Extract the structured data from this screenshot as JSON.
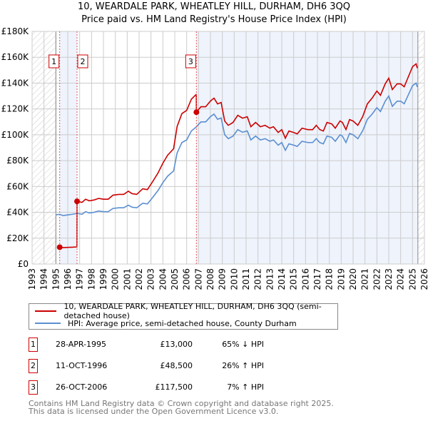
{
  "title_line1": "10, WEARDALE PARK, WHEATLEY HILL, DURHAM, DH6 3QQ",
  "title_line2": "Price paid vs. HM Land Registry's House Price Index (HPI)",
  "chart_data": {
    "type": "line",
    "title": "10, WEARDALE PARK, WHEATLEY HILL, DURHAM, DH6 3QQ — Price paid vs. HM Land Registry's House Price Index (HPI)",
    "xlim": [
      1993,
      2026
    ],
    "ylim": [
      0,
      180000
    ],
    "yticks": [
      {
        "v": 0,
        "label": "£0"
      },
      {
        "v": 20000,
        "label": "£20K"
      },
      {
        "v": 40000,
        "label": "£40K"
      },
      {
        "v": 60000,
        "label": "£60K"
      },
      {
        "v": 80000,
        "label": "£80K"
      },
      {
        "v": 100000,
        "label": "£100K"
      },
      {
        "v": 120000,
        "label": "£120K"
      },
      {
        "v": 140000,
        "label": "£140K"
      },
      {
        "v": 160000,
        "label": "£160K"
      },
      {
        "v": 180000,
        "label": "£180K"
      }
    ],
    "xticks": [
      "1993",
      "1994",
      "1995",
      "1996",
      "1997",
      "1998",
      "1999",
      "2000",
      "2001",
      "2002",
      "2003",
      "2004",
      "2005",
      "2006",
      "2007",
      "2008",
      "2009",
      "2010",
      "2011",
      "2012",
      "2013",
      "2014",
      "2015",
      "2016",
      "2017",
      "2018",
      "2019",
      "2020",
      "2021",
      "2022",
      "2023",
      "2024",
      "2025",
      "2026"
    ],
    "grid": true,
    "data_range": [
      1995.0,
      2025.45
    ],
    "series": [
      {
        "name": "10, WEARDALE PARK, WHEATLEY HILL, DURHAM, DH6 3QQ (semi-detached house)",
        "color": "#cc0000",
        "derived_from_hpi": true
      },
      {
        "name": "HPI: Average price, semi-detached house, County Durham",
        "color": "#5b8fd0",
        "points": [
          [
            1995.0,
            38000
          ],
          [
            1995.3,
            38500
          ],
          [
            1995.6,
            37500
          ],
          [
            1996.0,
            38000
          ],
          [
            1996.4,
            38500
          ],
          [
            1996.8,
            39200
          ],
          [
            1997.2,
            38500
          ],
          [
            1997.5,
            40500
          ],
          [
            1997.8,
            39500
          ],
          [
            1998.2,
            40000
          ],
          [
            1998.6,
            41000
          ],
          [
            1999.0,
            40500
          ],
          [
            1999.4,
            40500
          ],
          [
            1999.8,
            43000
          ],
          [
            2000.3,
            43500
          ],
          [
            2000.7,
            43500
          ],
          [
            2001.1,
            45500
          ],
          [
            2001.4,
            44000
          ],
          [
            2001.8,
            43500
          ],
          [
            2002.3,
            47000
          ],
          [
            2002.7,
            46500
          ],
          [
            2003.1,
            51000
          ],
          [
            2003.6,
            57000
          ],
          [
            2004.0,
            63000
          ],
          [
            2004.4,
            68000
          ],
          [
            2004.9,
            72000
          ],
          [
            2005.2,
            86000
          ],
          [
            2005.6,
            94000
          ],
          [
            2006.0,
            96000
          ],
          [
            2006.4,
            103000
          ],
          [
            2006.8,
            106000
          ],
          [
            2007.2,
            110000
          ],
          [
            2007.6,
            110000
          ],
          [
            2008.0,
            114000
          ],
          [
            2008.3,
            116000
          ],
          [
            2008.6,
            112000
          ],
          [
            2008.9,
            113000
          ],
          [
            2009.2,
            100000
          ],
          [
            2009.5,
            97000
          ],
          [
            2009.9,
            99000
          ],
          [
            2010.3,
            104000
          ],
          [
            2010.7,
            102000
          ],
          [
            2011.1,
            103000
          ],
          [
            2011.4,
            96000
          ],
          [
            2011.8,
            99000
          ],
          [
            2012.2,
            96000
          ],
          [
            2012.6,
            97000
          ],
          [
            2013.0,
            95000
          ],
          [
            2013.3,
            96000
          ],
          [
            2013.7,
            92000
          ],
          [
            2014.0,
            94000
          ],
          [
            2014.3,
            88000
          ],
          [
            2014.6,
            93000
          ],
          [
            2015.0,
            92000
          ],
          [
            2015.3,
            91000
          ],
          [
            2015.7,
            95000
          ],
          [
            2016.2,
            94000
          ],
          [
            2016.6,
            94000
          ],
          [
            2016.9,
            97000
          ],
          [
            2017.2,
            94000
          ],
          [
            2017.5,
            93000
          ],
          [
            2017.8,
            99000
          ],
          [
            2018.2,
            98000
          ],
          [
            2018.5,
            95000
          ],
          [
            2018.9,
            100000
          ],
          [
            2019.1,
            99000
          ],
          [
            2019.4,
            94000
          ],
          [
            2019.7,
            101000
          ],
          [
            2020.0,
            100000
          ],
          [
            2020.4,
            97000
          ],
          [
            2020.8,
            103000
          ],
          [
            2021.2,
            112000
          ],
          [
            2021.6,
            116000
          ],
          [
            2022.0,
            121000
          ],
          [
            2022.3,
            118000
          ],
          [
            2022.7,
            126000
          ],
          [
            2023.0,
            130000
          ],
          [
            2023.3,
            122000
          ],
          [
            2023.7,
            126000
          ],
          [
            2024.0,
            126000
          ],
          [
            2024.3,
            124000
          ],
          [
            2024.6,
            130000
          ],
          [
            2025.0,
            138000
          ],
          [
            2025.3,
            140000
          ],
          [
            2025.4,
            137000
          ]
        ]
      }
    ],
    "sales": [
      {
        "id": "1",
        "x": 1995.32,
        "price": 13000,
        "date": "28-APR-1995",
        "price_label": "£13,000",
        "hpi_label": "65% ↓ HPI"
      },
      {
        "id": "2",
        "x": 1996.78,
        "price": 48500,
        "date": "11-OCT-1996",
        "price_label": "£48,500",
        "hpi_label": "26% ↑ HPI"
      },
      {
        "id": "3",
        "x": 2006.82,
        "price": 117500,
        "date": "26-OCT-2006",
        "price_label": "£117,500",
        "hpi_label": "7% ↑ HPI"
      }
    ]
  },
  "footer_line1": "Contains HM Land Registry data © Crown copyright and database right 2025.",
  "footer_line2": "This data is licensed under the Open Government Licence v3.0."
}
